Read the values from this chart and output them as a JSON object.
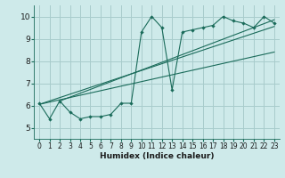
{
  "xlabel": "Humidex (Indice chaleur)",
  "bg_color": "#ceeaea",
  "grid_color": "#a8cccc",
  "line_color": "#1a6b5a",
  "xlim": [
    -0.5,
    23.5
  ],
  "ylim": [
    4.5,
    10.5
  ],
  "yticks": [
    5,
    6,
    7,
    8,
    9,
    10
  ],
  "xticks": [
    0,
    1,
    2,
    3,
    4,
    5,
    6,
    7,
    8,
    9,
    10,
    11,
    12,
    13,
    14,
    15,
    16,
    17,
    18,
    19,
    20,
    21,
    22,
    23
  ],
  "main_x": [
    0,
    1,
    2,
    3,
    4,
    5,
    6,
    7,
    8,
    9,
    10,
    11,
    12,
    13,
    14,
    15,
    16,
    17,
    18,
    19,
    20,
    21,
    22,
    23
  ],
  "main_y": [
    6.1,
    5.4,
    6.2,
    5.7,
    5.4,
    5.5,
    5.5,
    5.6,
    6.1,
    6.1,
    9.3,
    10.0,
    9.5,
    6.7,
    9.3,
    9.4,
    9.5,
    9.6,
    10.0,
    9.8,
    9.7,
    9.5,
    10.0,
    9.7
  ],
  "line1_x": [
    0,
    23
  ],
  "line1_y": [
    6.05,
    9.55
  ],
  "line2_x": [
    0,
    23
  ],
  "line2_y": [
    6.05,
    8.4
  ],
  "line3_x": [
    2,
    23
  ],
  "line3_y": [
    6.2,
    9.85
  ]
}
